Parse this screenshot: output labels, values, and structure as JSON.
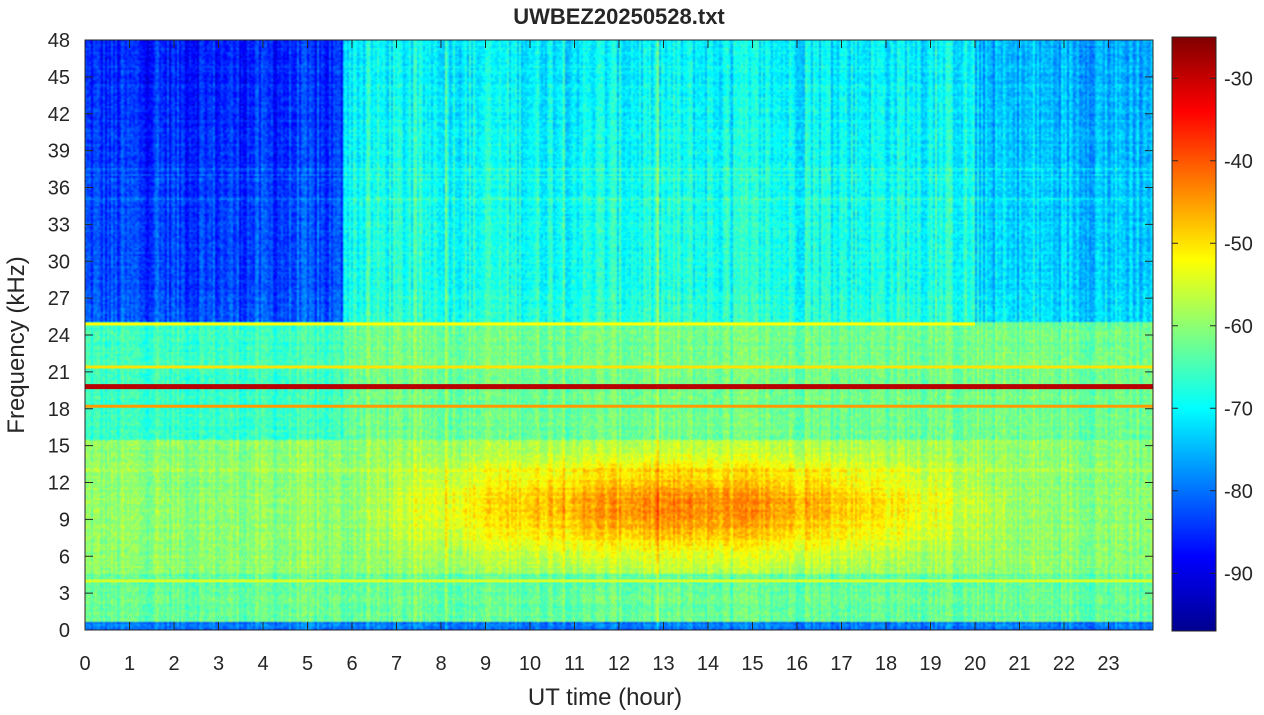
{
  "chart_data": {
    "type": "heatmap",
    "title": "UWBEZ20250528.txt",
    "xlabel": "UT time (hour)",
    "ylabel": "Frequency (kHz)",
    "xlim": [
      0,
      24
    ],
    "ylim": [
      0,
      48
    ],
    "x_ticks": [
      0,
      1,
      2,
      3,
      4,
      5,
      6,
      7,
      8,
      9,
      10,
      11,
      12,
      13,
      14,
      15,
      16,
      17,
      18,
      19,
      20,
      21,
      22,
      23
    ],
    "y_ticks": [
      0,
      3,
      6,
      9,
      12,
      15,
      18,
      21,
      24,
      27,
      30,
      33,
      36,
      39,
      42,
      45,
      48
    ],
    "colorbar": {
      "colormap": "jet",
      "range": [
        -97,
        -25
      ],
      "ticks": [
        -90,
        -80,
        -70,
        -60,
        -50,
        -40,
        -30
      ]
    },
    "features": [
      {
        "label": "strong transmitter line",
        "freq_khz": 19.8,
        "time_range_h": [
          0,
          24
        ],
        "level": -29
      },
      {
        "label": "transmitter line",
        "freq_khz": 18.2,
        "time_range_h": [
          0,
          24
        ],
        "level": -45
      },
      {
        "label": "transmitter line",
        "freq_khz": 21.4,
        "time_range_h": [
          0,
          24
        ],
        "level": -50
      },
      {
        "label": "transmitter line",
        "freq_khz": 24.9,
        "time_range_h": [
          0,
          20
        ],
        "level": -52
      },
      {
        "label": "transmitter line",
        "freq_khz": 4.0,
        "time_range_h": [
          0,
          24
        ],
        "level": -55
      },
      {
        "label": "daytime broadband emission",
        "freq_range_khz": [
          5,
          15
        ],
        "time_range_h": [
          6,
          21
        ],
        "level": -46
      },
      {
        "label": "quiet upper band",
        "freq_range_khz": [
          25,
          48
        ],
        "time_range_h": [
          0,
          5.8
        ],
        "level": -84
      }
    ]
  }
}
